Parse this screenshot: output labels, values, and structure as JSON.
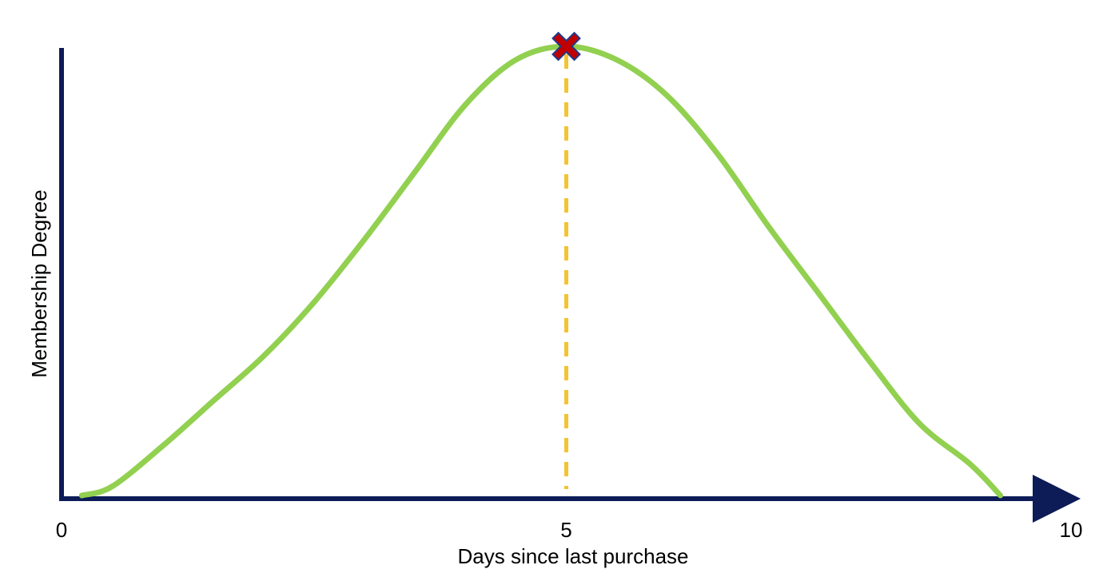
{
  "chart_data": {
    "type": "line",
    "title": "",
    "xlabel": "Days since last purchase",
    "ylabel": "Membership Degree",
    "xlim": [
      0,
      10
    ],
    "ylim": [
      0,
      1
    ],
    "x_ticks": [
      "0",
      "5",
      "10"
    ],
    "grid": false,
    "legend": "none",
    "series": [
      {
        "curve": "gaussian",
        "mean": 5,
        "sigma": 1.9,
        "x": [
          0.2,
          0.5,
          1,
          1.5,
          2,
          2.5,
          3,
          3.5,
          4,
          4.5,
          5,
          5.5,
          6,
          6.5,
          7,
          7.5,
          8,
          8.5,
          9,
          9.3
        ],
        "y": [
          0.0,
          0.02,
          0.11,
          0.21,
          0.31,
          0.43,
          0.57,
          0.72,
          0.87,
          0.97,
          1.0,
          0.97,
          0.89,
          0.76,
          0.6,
          0.45,
          0.3,
          0.16,
          0.07,
          0.0
        ]
      }
    ],
    "annotations": [
      {
        "type": "marker",
        "symbol": "x",
        "x": 5,
        "y": 1.0
      },
      {
        "type": "vline",
        "x": 5,
        "style": "dashed"
      }
    ],
    "colors": {
      "axis": "#0d1b57",
      "curve": "#92d050",
      "marker_fill": "#c00000",
      "marker_stroke": "#1f3a8a",
      "dashed_line": "#f4c430"
    }
  }
}
